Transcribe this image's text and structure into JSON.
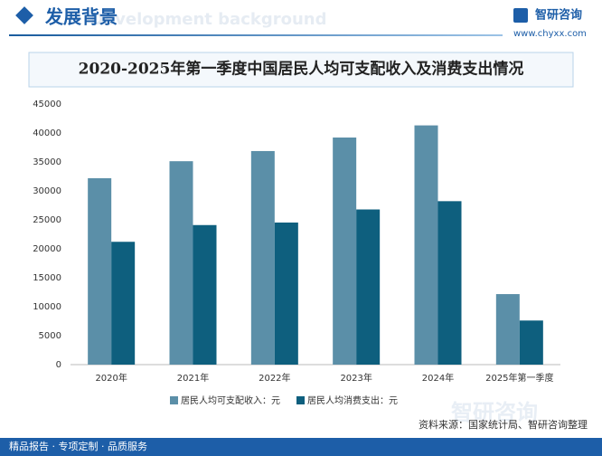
{
  "header": {
    "title": "发展背景",
    "subtitle_en": "Development background",
    "brand": "智研咨询",
    "url": "www.chyxx.com"
  },
  "chart_data": {
    "type": "bar",
    "title": "2020-2025年第一季度中国居民人均可支配收入及消费支出情况",
    "categories": [
      "2020年",
      "2021年",
      "2022年",
      "2023年",
      "2024年",
      "2025年第一季度"
    ],
    "series": [
      {
        "name": "居民人均可支配收入：元",
        "color": "#5b8fa8",
        "values": [
          32189,
          35128,
          36883,
          39218,
          41314,
          12179
        ]
      },
      {
        "name": "居民人均消费支出：元",
        "color": "#0e5f7e",
        "values": [
          21210,
          24100,
          24538,
          26796,
          28227,
          7615
        ]
      }
    ],
    "ylim": [
      0,
      45000
    ],
    "yticks": [
      0,
      5000,
      10000,
      15000,
      20000,
      25000,
      30000,
      35000,
      40000,
      45000
    ],
    "grid": false
  },
  "footer": {
    "left": "精品报告 · 专项定制 · 品质服务",
    "source": "资料来源：国家统计局、智研咨询整理",
    "brand": "智研咨询"
  }
}
